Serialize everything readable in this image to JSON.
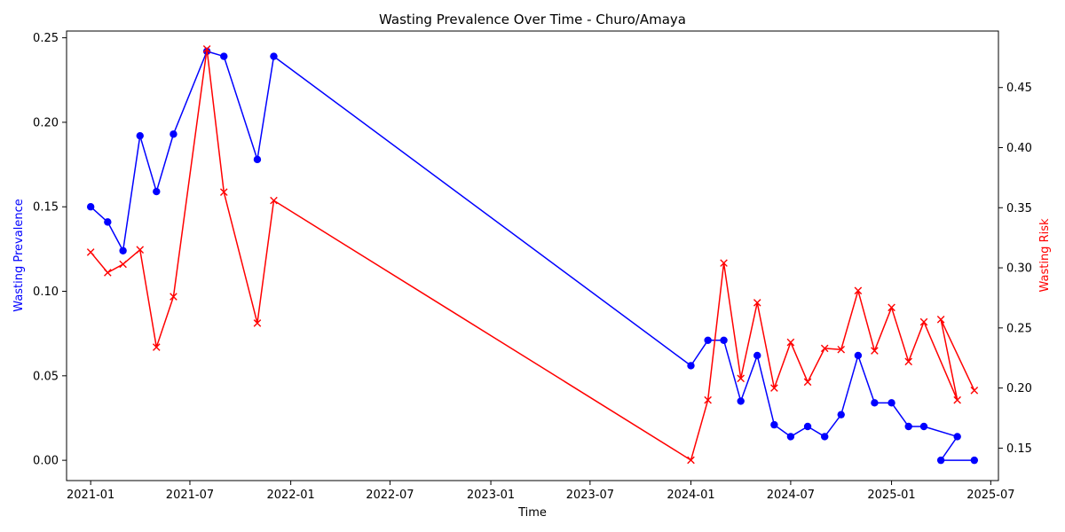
{
  "chart_data": {
    "type": "line",
    "title": "Wasting Prevalence Over Time - Churo/Amaya",
    "xlabel": "Time",
    "ylabel_left": "Wasting Prevalence",
    "ylabel_right": "Wasting Risk",
    "xlim": [
      "2020-11-18",
      "2025-07-15"
    ],
    "ylim_left": [
      -0.012,
      0.254
    ],
    "ylim_right": [
      0.123,
      0.497
    ],
    "x_ticks": [
      "2021-01",
      "2021-07",
      "2022-01",
      "2022-07",
      "2023-01",
      "2023-07",
      "2024-01",
      "2024-07",
      "2025-01",
      "2025-07"
    ],
    "y_ticks_left": [
      "0.00",
      "0.05",
      "0.10",
      "0.15",
      "0.20",
      "0.25"
    ],
    "y_ticks_right": [
      "0.15",
      "0.20",
      "0.25",
      "0.30",
      "0.35",
      "0.40",
      "0.45"
    ],
    "grid": false,
    "legend": "none",
    "series": [
      {
        "axis": "left",
        "color": "#0000ff",
        "marker": "circle",
        "points": [
          [
            "2021-01-01",
            0.15
          ],
          [
            "2021-02-01",
            0.141
          ],
          [
            "2021-03-01",
            0.124
          ],
          [
            "2021-04-01",
            0.192
          ],
          [
            "2021-05-01",
            0.159
          ],
          [
            "2021-06-01",
            0.193
          ],
          [
            "2021-08-01",
            0.242
          ],
          [
            "2021-09-01",
            0.239
          ],
          [
            "2021-11-01",
            0.178
          ],
          [
            "2021-12-01",
            0.239
          ],
          [
            "2024-01-01",
            0.056
          ],
          [
            "2024-02-01",
            0.071
          ],
          [
            "2024-03-01",
            0.071
          ],
          [
            "2024-04-01",
            0.035
          ],
          [
            "2024-05-01",
            0.062
          ],
          [
            "2024-06-01",
            0.021
          ],
          [
            "2024-07-01",
            0.014
          ],
          [
            "2024-08-01",
            0.02
          ],
          [
            "2024-09-01",
            0.014
          ],
          [
            "2024-10-01",
            0.027
          ],
          [
            "2024-11-01",
            0.062
          ],
          [
            "2024-12-01",
            0.034
          ],
          [
            "2025-01-01",
            0.034
          ],
          [
            "2025-02-01",
            0.02
          ],
          [
            "2025-03-01",
            0.02
          ],
          [
            "2025-05-01",
            0.014
          ],
          [
            "2025-04-01",
            0.0
          ],
          [
            "2025-06-01",
            0.0
          ]
        ]
      },
      {
        "axis": "right",
        "color": "#ff0000",
        "marker": "x",
        "points": [
          [
            "2021-01-01",
            0.313
          ],
          [
            "2021-02-01",
            0.296
          ],
          [
            "2021-03-01",
            0.303
          ],
          [
            "2021-04-01",
            0.315
          ],
          [
            "2021-05-01",
            0.234
          ],
          [
            "2021-06-01",
            0.276
          ],
          [
            "2021-08-01",
            0.482
          ],
          [
            "2021-09-01",
            0.363
          ],
          [
            "2021-11-01",
            0.254
          ],
          [
            "2021-12-01",
            0.356
          ],
          [
            "2024-01-01",
            0.14
          ],
          [
            "2024-02-01",
            0.19
          ],
          [
            "2024-03-01",
            0.304
          ],
          [
            "2024-04-01",
            0.208
          ],
          [
            "2024-05-01",
            0.271
          ],
          [
            "2024-06-01",
            0.2
          ],
          [
            "2024-07-01",
            0.238
          ],
          [
            "2024-08-01",
            0.205
          ],
          [
            "2024-09-01",
            0.233
          ],
          [
            "2024-10-01",
            0.232
          ],
          [
            "2024-11-01",
            0.281
          ],
          [
            "2024-12-01",
            0.231
          ],
          [
            "2025-01-01",
            0.267
          ],
          [
            "2025-02-01",
            0.222
          ],
          [
            "2025-03-01",
            0.255
          ],
          [
            "2025-05-01",
            0.19
          ],
          [
            "2025-04-01",
            0.257
          ],
          [
            "2025-06-01",
            0.198
          ]
        ]
      }
    ]
  }
}
